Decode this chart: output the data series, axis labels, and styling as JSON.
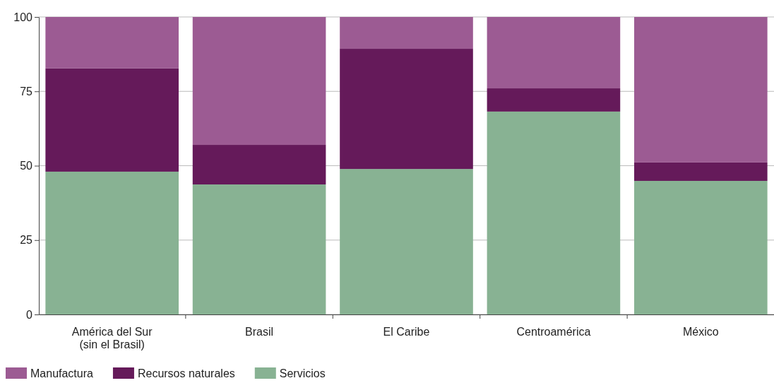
{
  "chart_data": {
    "type": "bar",
    "stacked": true,
    "categories": [
      "América del Sur (sin el Brasil)",
      "Brasil",
      "El Caribe",
      "Centroamérica",
      "México"
    ],
    "series": [
      {
        "name": "Servicios",
        "color": "#88b293",
        "values": [
          48.0,
          43.7,
          48.9,
          68.2,
          44.9
        ]
      },
      {
        "name": "Recursos naturales",
        "color": "#651a5a",
        "values": [
          34.7,
          13.3,
          40.4,
          7.8,
          6.2
        ]
      },
      {
        "name": "Manufactura",
        "color": "#9c5b93",
        "values": [
          17.3,
          43.0,
          10.7,
          24.0,
          48.9
        ]
      }
    ],
    "ylim": [
      0,
      100
    ],
    "yticks": [
      0,
      25,
      50,
      75,
      100
    ],
    "grid": "y",
    "legend": "bottom left"
  }
}
